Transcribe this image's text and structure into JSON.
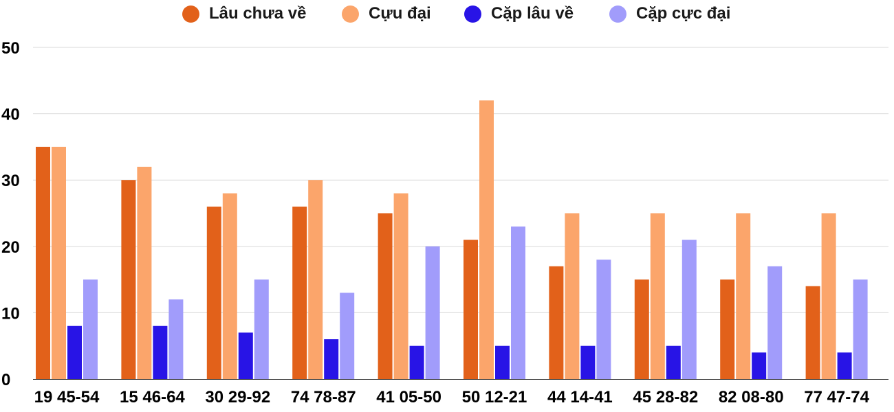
{
  "chart_data": {
    "type": "bar",
    "categories": [
      "19 45-54",
      "15 46-64",
      "30 29-92",
      "74 78-87",
      "41 05-50",
      "50 12-21",
      "44 14-41",
      "45 28-82",
      "82 08-80",
      "77 47-74"
    ],
    "series": [
      {
        "name": "Lâu chưa về",
        "color": "#e2611a",
        "values": [
          35,
          30,
          26,
          26,
          25,
          21,
          17,
          15,
          15,
          14
        ]
      },
      {
        "name": "Cựu đại",
        "color": "#fba56b",
        "values": [
          35,
          32,
          28,
          30,
          28,
          42,
          25,
          25,
          25,
          25
        ]
      },
      {
        "name": "Cặp lâu về",
        "color": "#2814e6",
        "values": [
          8,
          8,
          7,
          6,
          5,
          5,
          5,
          5,
          4,
          4
        ]
      },
      {
        "name": "Cặp cực đại",
        "color": "#a19cfb",
        "values": [
          15,
          12,
          15,
          13,
          20,
          23,
          18,
          21,
          17,
          15
        ]
      }
    ],
    "ylim": [
      0,
      50
    ],
    "yticks": [
      0,
      10,
      20,
      30,
      40,
      50
    ],
    "title": "",
    "xlabel": "",
    "ylabel": "",
    "grid": true,
    "legend_position": "top"
  }
}
